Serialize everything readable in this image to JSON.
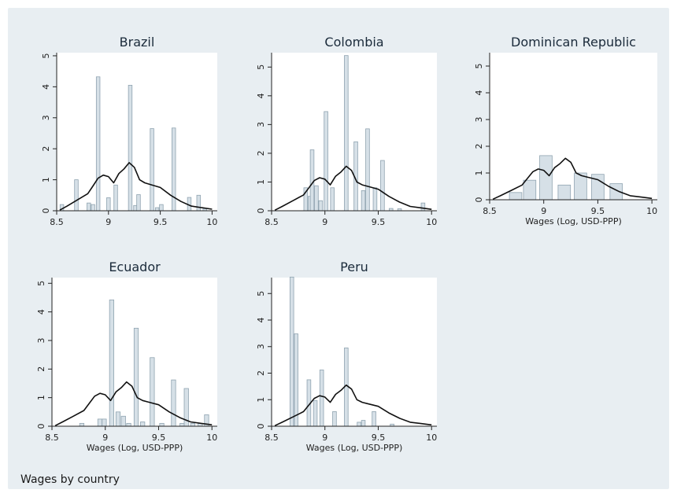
{
  "figure": {
    "note": "Wages by country",
    "xlabel": "Wages (Log, USD-PPP)",
    "colors": {
      "background": "#e8eef2",
      "plot_area": "#ffffff",
      "bar_fill": "#d6e0e7",
      "bar_stroke": "#8fa3b0",
      "kernel_line": "#111111",
      "title": "#1a2a3a"
    }
  },
  "chart_data": [
    {
      "type": "bar",
      "title": "Brazil",
      "xlabel": "",
      "xlim": [
        8.5,
        10.05
      ],
      "ylim": [
        0,
        5.1
      ],
      "xticks": [
        "8.5",
        "9",
        "9.5",
        "10"
      ],
      "yticks": [
        "0",
        "1",
        "2",
        "3",
        "4",
        "5"
      ],
      "bin_width": 0.035,
      "histogram": [
        {
          "x": 8.55,
          "y": 0.2
        },
        {
          "x": 8.69,
          "y": 1.0
        },
        {
          "x": 8.81,
          "y": 0.25
        },
        {
          "x": 8.85,
          "y": 0.2
        },
        {
          "x": 8.9,
          "y": 4.32
        },
        {
          "x": 9.0,
          "y": 0.42
        },
        {
          "x": 9.07,
          "y": 0.83
        },
        {
          "x": 9.21,
          "y": 4.05
        },
        {
          "x": 9.26,
          "y": 0.17
        },
        {
          "x": 9.29,
          "y": 0.52
        },
        {
          "x": 9.42,
          "y": 2.65
        },
        {
          "x": 9.47,
          "y": 0.1
        },
        {
          "x": 9.51,
          "y": 0.2
        },
        {
          "x": 9.63,
          "y": 2.67
        },
        {
          "x": 9.78,
          "y": 0.43
        },
        {
          "x": 9.87,
          "y": 0.5
        },
        {
          "x": 9.93,
          "y": 0.07
        }
      ],
      "density_x": [
        8.53,
        8.6,
        8.7,
        8.8,
        8.85,
        8.9,
        8.95,
        9.0,
        9.05,
        9.1,
        9.15,
        9.2,
        9.25,
        9.3,
        9.35,
        9.4,
        9.5,
        9.6,
        9.7,
        9.8,
        9.9,
        10.0
      ],
      "density_y": [
        0.02,
        0.15,
        0.35,
        0.55,
        0.8,
        1.05,
        1.15,
        1.1,
        0.9,
        1.2,
        1.35,
        1.55,
        1.4,
        1.0,
        0.9,
        0.85,
        0.75,
        0.5,
        0.3,
        0.15,
        0.1,
        0.05
      ]
    },
    {
      "type": "bar",
      "title": "Colombia",
      "xlabel": "",
      "xlim": [
        8.5,
        10.05
      ],
      "ylim": [
        0,
        5.5
      ],
      "xticks": [
        "8.5",
        "9",
        "9.5",
        "10"
      ],
      "yticks": [
        "0",
        "1",
        "2",
        "3",
        "4",
        "5"
      ],
      "bin_width": 0.035,
      "histogram": [
        {
          "x": 8.82,
          "y": 0.8
        },
        {
          "x": 8.86,
          "y": 0.5
        },
        {
          "x": 8.88,
          "y": 2.12
        },
        {
          "x": 8.92,
          "y": 0.87
        },
        {
          "x": 8.96,
          "y": 0.35
        },
        {
          "x": 9.01,
          "y": 3.45
        },
        {
          "x": 9.07,
          "y": 0.8
        },
        {
          "x": 9.2,
          "y": 5.4
        },
        {
          "x": 9.29,
          "y": 2.4
        },
        {
          "x": 9.36,
          "y": 0.7
        },
        {
          "x": 9.4,
          "y": 2.85
        },
        {
          "x": 9.47,
          "y": 0.8
        },
        {
          "x": 9.54,
          "y": 1.75
        },
        {
          "x": 9.62,
          "y": 0.08
        },
        {
          "x": 9.7,
          "y": 0.07
        },
        {
          "x": 9.92,
          "y": 0.27
        }
      ],
      "density_x": [
        8.53,
        8.6,
        8.7,
        8.8,
        8.85,
        8.9,
        8.95,
        9.0,
        9.05,
        9.1,
        9.15,
        9.2,
        9.25,
        9.3,
        9.35,
        9.4,
        9.5,
        9.6,
        9.7,
        9.8,
        9.9,
        10.0
      ],
      "density_y": [
        0.02,
        0.15,
        0.35,
        0.55,
        0.8,
        1.05,
        1.15,
        1.1,
        0.9,
        1.2,
        1.35,
        1.55,
        1.4,
        1.0,
        0.9,
        0.85,
        0.75,
        0.5,
        0.3,
        0.15,
        0.1,
        0.05
      ]
    },
    {
      "type": "bar",
      "title": "Dominican Republic",
      "xlabel": "Wages (Log, USD-PPP)",
      "xlim": [
        8.5,
        10.05
      ],
      "ylim": [
        0,
        5.5
      ],
      "xticks": [
        "8.5",
        "9",
        "9.5",
        "10"
      ],
      "yticks": [
        "0",
        "1",
        "2",
        "3",
        "4",
        "5"
      ],
      "bin_width": 0.115,
      "histogram": [
        {
          "x": 8.74,
          "y": 0.27
        },
        {
          "x": 8.87,
          "y": 0.73
        },
        {
          "x": 9.02,
          "y": 1.65
        },
        {
          "x": 9.19,
          "y": 0.55
        },
        {
          "x": 9.34,
          "y": 1.0
        },
        {
          "x": 9.5,
          "y": 0.95
        },
        {
          "x": 9.67,
          "y": 0.6
        }
      ],
      "density_x": [
        8.53,
        8.6,
        8.7,
        8.8,
        8.85,
        8.9,
        8.95,
        9.0,
        9.05,
        9.1,
        9.15,
        9.2,
        9.25,
        9.3,
        9.35,
        9.4,
        9.5,
        9.6,
        9.7,
        9.8,
        9.9,
        10.0
      ],
      "density_y": [
        0.02,
        0.15,
        0.35,
        0.55,
        0.8,
        1.05,
        1.15,
        1.1,
        0.9,
        1.2,
        1.35,
        1.55,
        1.4,
        1.0,
        0.9,
        0.85,
        0.75,
        0.5,
        0.3,
        0.15,
        0.1,
        0.05
      ]
    },
    {
      "type": "bar",
      "title": "Ecuador",
      "xlabel": "Wages (Log, USD-PPP)",
      "xlim": [
        8.5,
        10.05
      ],
      "ylim": [
        0,
        5.2
      ],
      "xticks": [
        "8.5",
        "9",
        "9.5",
        "10"
      ],
      "yticks": [
        "0",
        "1",
        "2",
        "3",
        "4",
        "5"
      ],
      "bin_width": 0.04,
      "histogram": [
        {
          "x": 8.78,
          "y": 0.1
        },
        {
          "x": 8.95,
          "y": 0.25
        },
        {
          "x": 8.99,
          "y": 0.25
        },
        {
          "x": 9.06,
          "y": 4.42
        },
        {
          "x": 9.12,
          "y": 0.5
        },
        {
          "x": 9.17,
          "y": 0.35
        },
        {
          "x": 9.22,
          "y": 0.1
        },
        {
          "x": 9.29,
          "y": 3.43
        },
        {
          "x": 9.35,
          "y": 0.15
        },
        {
          "x": 9.44,
          "y": 2.4
        },
        {
          "x": 9.53,
          "y": 0.1
        },
        {
          "x": 9.64,
          "y": 1.62
        },
        {
          "x": 9.72,
          "y": 0.1
        },
        {
          "x": 9.76,
          "y": 1.32
        },
        {
          "x": 9.82,
          "y": 0.1
        },
        {
          "x": 9.89,
          "y": 0.1
        },
        {
          "x": 9.95,
          "y": 0.4
        }
      ],
      "density_x": [
        8.53,
        8.6,
        8.7,
        8.8,
        8.85,
        8.9,
        8.95,
        9.0,
        9.05,
        9.1,
        9.15,
        9.2,
        9.25,
        9.3,
        9.35,
        9.4,
        9.5,
        9.6,
        9.7,
        9.8,
        9.9,
        10.0
      ],
      "density_y": [
        0.02,
        0.15,
        0.35,
        0.55,
        0.8,
        1.05,
        1.15,
        1.1,
        0.9,
        1.2,
        1.35,
        1.55,
        1.4,
        1.0,
        0.9,
        0.85,
        0.75,
        0.5,
        0.3,
        0.15,
        0.1,
        0.05
      ]
    },
    {
      "type": "bar",
      "title": "Peru",
      "xlabel": "Wages (Log, USD-PPP)",
      "xlim": [
        8.5,
        10.05
      ],
      "ylim": [
        0,
        5.6
      ],
      "xticks": [
        "8.5",
        "9",
        "9.5",
        "10"
      ],
      "yticks": [
        "0",
        "1",
        "2",
        "3",
        "4",
        "5"
      ],
      "bin_width": 0.035,
      "histogram": [
        {
          "x": 8.69,
          "y": 5.62
        },
        {
          "x": 8.73,
          "y": 3.48
        },
        {
          "x": 8.85,
          "y": 1.75
        },
        {
          "x": 8.91,
          "y": 0.97
        },
        {
          "x": 8.97,
          "y": 2.12
        },
        {
          "x": 9.09,
          "y": 0.55
        },
        {
          "x": 9.2,
          "y": 2.95
        },
        {
          "x": 9.32,
          "y": 0.15
        },
        {
          "x": 9.36,
          "y": 0.22
        },
        {
          "x": 9.46,
          "y": 0.55
        },
        {
          "x": 9.63,
          "y": 0.08
        }
      ],
      "density_x": [
        8.53,
        8.6,
        8.7,
        8.8,
        8.85,
        8.9,
        8.95,
        9.0,
        9.05,
        9.1,
        9.15,
        9.2,
        9.25,
        9.3,
        9.35,
        9.4,
        9.5,
        9.6,
        9.7,
        9.8,
        9.9,
        10.0
      ],
      "density_y": [
        0.02,
        0.15,
        0.35,
        0.55,
        0.8,
        1.05,
        1.15,
        1.1,
        0.9,
        1.2,
        1.35,
        1.55,
        1.4,
        1.0,
        0.9,
        0.85,
        0.75,
        0.5,
        0.3,
        0.15,
        0.1,
        0.05
      ]
    }
  ]
}
